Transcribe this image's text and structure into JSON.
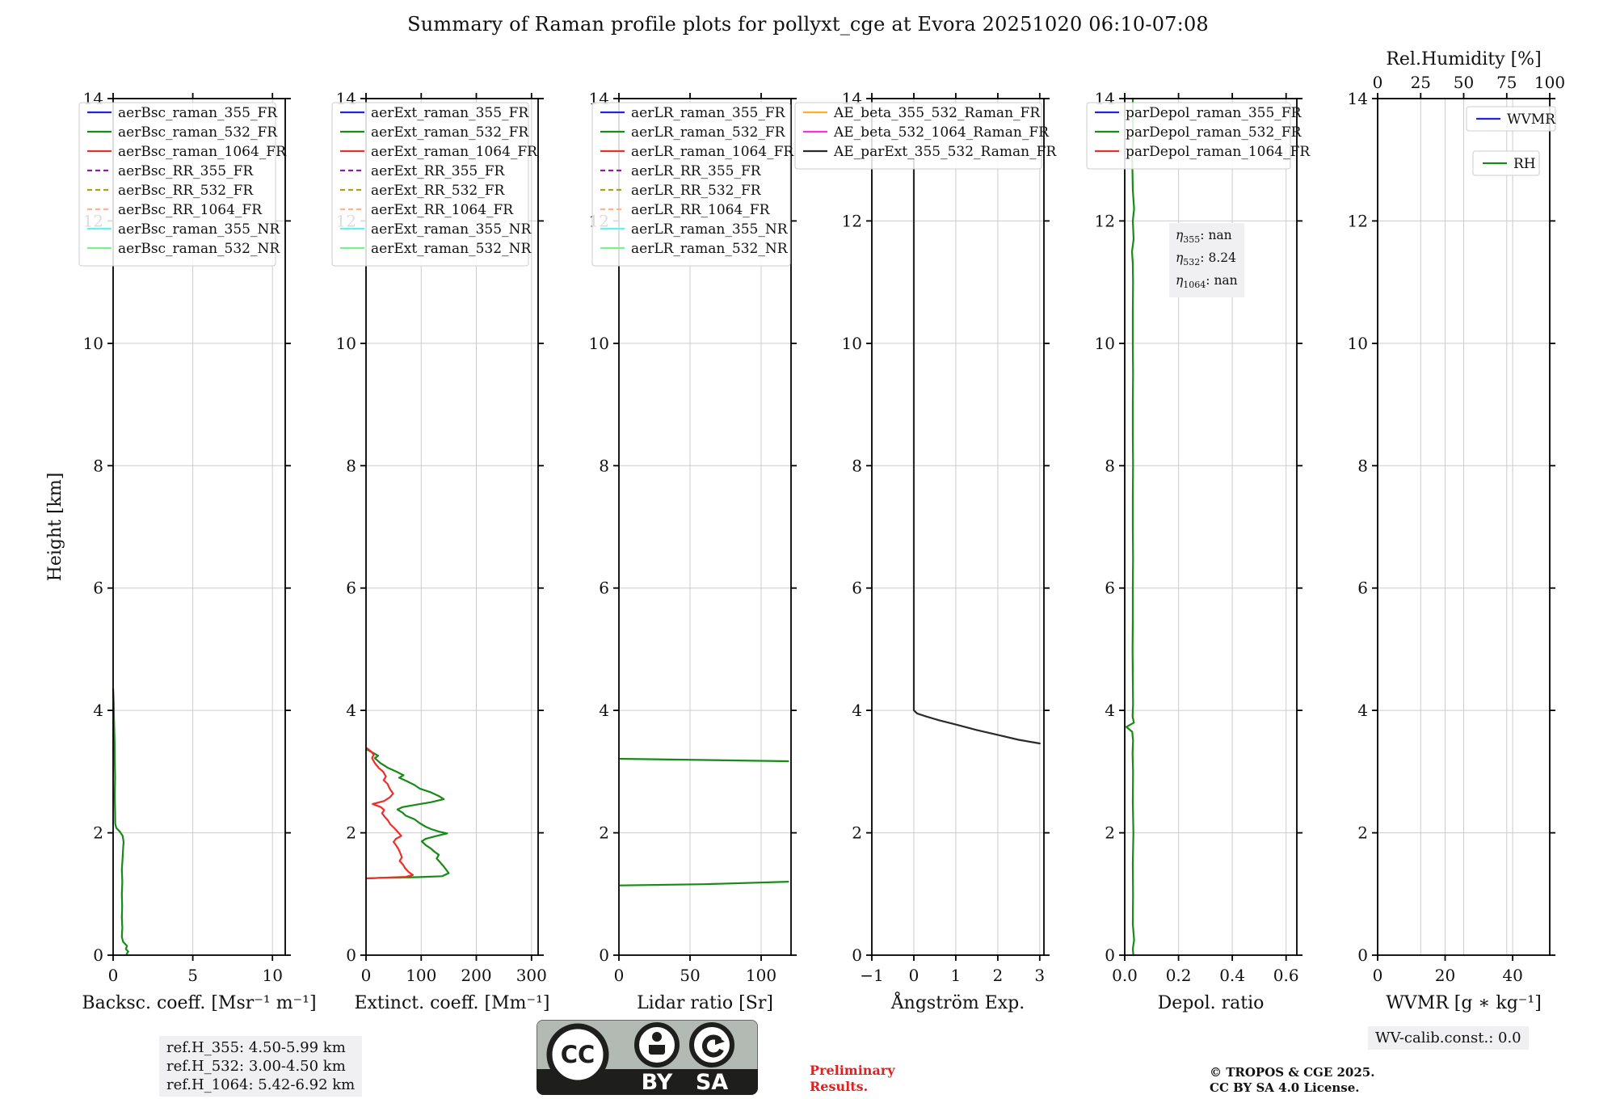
{
  "title": "Summary of Raman profile plots for pollyxt_cge at Evora 20251020 06:10-07:08",
  "colors": {
    "blue": "#2222e6",
    "green": "#188a18",
    "red": "#e8312a",
    "purple": "#8a1fa0",
    "olive": "#a8a21c",
    "salmon": "#ffb48e",
    "cyan": "#63f2ea",
    "lightgreen": "#7dee8d",
    "orange": "#ffb028",
    "magenta": "#ff2fd8",
    "black": "#2a2a2a",
    "grid": "#cccccc",
    "annot_bg": "#f0f0f2",
    "preliminary_red": "#dd2222"
  },
  "eta": {
    "rows": [
      {
        "sub": "355",
        "val": "nan"
      },
      {
        "sub": "532",
        "val": "8.24"
      },
      {
        "sub": "1064",
        "val": "nan"
      }
    ]
  },
  "footer": {
    "ref_box": [
      "ref.H_355: 4.50-5.99 km",
      "ref.H_532: 3.00-4.50 km",
      "ref.H_1064: 5.42-6.92 km"
    ],
    "preliminary": [
      "Preliminary",
      "Results."
    ],
    "copyright": [
      "© TROPOS & CGE 2025.",
      "CC BY SA 4.0 License."
    ],
    "wv_calib": "WV-calib.const.: 0.0",
    "cc_badge": {
      "cc": "CC",
      "by": "BY",
      "sa": "SA"
    }
  },
  "chart_data": [
    {
      "type": "line",
      "xlabel": "Backsc. coeff. [Msr⁻¹ m⁻¹]",
      "ylabel": "Height [km]",
      "xlim": [
        0,
        10.8
      ],
      "xticks": [
        0,
        5,
        10
      ],
      "xtick_labels": [
        "0",
        "5",
        "10"
      ],
      "ylim": [
        0,
        14
      ],
      "yticks": [
        0,
        2,
        4,
        6,
        8,
        10,
        12,
        14
      ],
      "legend": [
        {
          "label": "aerBsc_raman_355_FR",
          "color": "blue",
          "dash": false
        },
        {
          "label": "aerBsc_raman_532_FR",
          "color": "green",
          "dash": false
        },
        {
          "label": "aerBsc_raman_1064_FR",
          "color": "red",
          "dash": false
        },
        {
          "label": "aerBsc_RR_355_FR",
          "color": "purple",
          "dash": true
        },
        {
          "label": "aerBsc_RR_532_FR",
          "color": "olive",
          "dash": true
        },
        {
          "label": "aerBsc_RR_1064_FR",
          "color": "salmon",
          "dash": true
        },
        {
          "label": "aerBsc_raman_355_NR",
          "color": "cyan",
          "dash": false
        },
        {
          "label": "aerBsc_raman_532_NR",
          "color": "lightgreen",
          "dash": false
        }
      ],
      "series": [
        {
          "name": "aerBsc_raman_532_FR",
          "color": "green",
          "points": [
            [
              0.85,
              0.02
            ],
            [
              0.95,
              0.06
            ],
            [
              0.8,
              0.1
            ],
            [
              0.87,
              0.15
            ],
            [
              0.62,
              0.22
            ],
            [
              0.55,
              0.3
            ],
            [
              0.58,
              0.45
            ],
            [
              0.55,
              0.62
            ],
            [
              0.57,
              0.8
            ],
            [
              0.55,
              1.0
            ],
            [
              0.58,
              1.2
            ],
            [
              0.55,
              1.4
            ],
            [
              0.6,
              1.6
            ],
            [
              0.63,
              1.75
            ],
            [
              0.66,
              1.85
            ],
            [
              0.6,
              1.95
            ],
            [
              0.42,
              2.02
            ],
            [
              0.2,
              2.08
            ],
            [
              0.13,
              2.15
            ],
            [
              0.12,
              2.35
            ],
            [
              0.1,
              2.6
            ],
            [
              0.12,
              2.9
            ],
            [
              0.1,
              3.2
            ],
            [
              0.09,
              3.5
            ],
            [
              0.07,
              3.7
            ],
            [
              0.05,
              3.9
            ],
            [
              0.04,
              4.1
            ],
            [
              0.02,
              4.25
            ],
            [
              0,
              4.35
            ]
          ]
        }
      ]
    },
    {
      "type": "line",
      "xlabel": "Extinct. coeff. [Mm⁻¹]",
      "xlim": [
        0,
        312
      ],
      "xticks": [
        0,
        100,
        200,
        300
      ],
      "xtick_labels": [
        "0",
        "100",
        "200",
        "300"
      ],
      "ylim": [
        0,
        14
      ],
      "yticks": [
        0,
        2,
        4,
        6,
        8,
        10,
        12,
        14
      ],
      "legend": [
        {
          "label": "aerExt_raman_355_FR",
          "color": "blue",
          "dash": false
        },
        {
          "label": "aerExt_raman_532_FR",
          "color": "green",
          "dash": false
        },
        {
          "label": "aerExt_raman_1064_FR",
          "color": "red",
          "dash": false
        },
        {
          "label": "aerExt_RR_355_FR",
          "color": "purple",
          "dash": true
        },
        {
          "label": "aerExt_RR_532_FR",
          "color": "olive",
          "dash": true
        },
        {
          "label": "aerExt_RR_1064_FR",
          "color": "salmon",
          "dash": true
        },
        {
          "label": "aerExt_raman_355_NR",
          "color": "cyan",
          "dash": false
        },
        {
          "label": "aerExt_raman_532_NR",
          "color": "lightgreen",
          "dash": false
        }
      ],
      "series": [
        {
          "name": "aerExt_raman_532_FR",
          "color": "green",
          "points": [
            [
              2,
              3.36
            ],
            [
              14,
              3.3
            ],
            [
              22,
              3.26
            ],
            [
              16,
              3.22
            ],
            [
              26,
              3.14
            ],
            [
              40,
              3.06
            ],
            [
              55,
              3.0
            ],
            [
              68,
              2.94
            ],
            [
              60,
              2.9
            ],
            [
              75,
              2.84
            ],
            [
              88,
              2.78
            ],
            [
              98,
              2.72
            ],
            [
              118,
              2.66
            ],
            [
              132,
              2.6
            ],
            [
              141,
              2.55
            ],
            [
              118,
              2.5
            ],
            [
              92,
              2.46
            ],
            [
              66,
              2.42
            ],
            [
              57,
              2.38
            ],
            [
              66,
              2.33
            ],
            [
              72,
              2.28
            ],
            [
              88,
              2.22
            ],
            [
              97,
              2.16
            ],
            [
              108,
              2.1
            ],
            [
              118,
              2.06
            ],
            [
              132,
              2.02
            ],
            [
              147,
              1.99
            ],
            [
              128,
              1.95
            ],
            [
              108,
              1.9
            ],
            [
              101,
              1.86
            ],
            [
              108,
              1.8
            ],
            [
              118,
              1.74
            ],
            [
              124,
              1.69
            ],
            [
              132,
              1.64
            ],
            [
              128,
              1.58
            ],
            [
              134,
              1.52
            ],
            [
              140,
              1.46
            ],
            [
              145,
              1.4
            ],
            [
              150,
              1.34
            ],
            [
              138,
              1.29
            ],
            [
              92,
              1.275
            ],
            [
              30,
              1.265
            ],
            [
              2,
              1.255
            ]
          ]
        },
        {
          "name": "aerExt_raman_1064_FR",
          "color": "red",
          "points": [
            [
              2,
              3.38
            ],
            [
              9,
              3.33
            ],
            [
              14,
              3.28
            ],
            [
              11,
              3.22
            ],
            [
              16,
              3.14
            ],
            [
              23,
              3.06
            ],
            [
              31,
              3.0
            ],
            [
              36,
              2.92
            ],
            [
              32,
              2.86
            ],
            [
              39,
              2.8
            ],
            [
              43,
              2.72
            ],
            [
              49,
              2.64
            ],
            [
              43,
              2.58
            ],
            [
              33,
              2.52
            ],
            [
              12,
              2.47
            ],
            [
              27,
              2.42
            ],
            [
              33,
              2.37
            ],
            [
              29,
              2.32
            ],
            [
              34,
              2.26
            ],
            [
              40,
              2.2
            ],
            [
              44,
              2.14
            ],
            [
              51,
              2.08
            ],
            [
              59,
              2.0
            ],
            [
              64,
              1.95
            ],
            [
              54,
              1.9
            ],
            [
              50,
              1.85
            ],
            [
              55,
              1.79
            ],
            [
              59,
              1.73
            ],
            [
              62,
              1.67
            ],
            [
              65,
              1.6
            ],
            [
              61,
              1.54
            ],
            [
              67,
              1.48
            ],
            [
              71,
              1.42
            ],
            [
              77,
              1.36
            ],
            [
              85,
              1.31
            ],
            [
              72,
              1.28
            ],
            [
              30,
              1.265
            ],
            [
              3,
              1.255
            ]
          ]
        }
      ]
    },
    {
      "type": "line",
      "xlabel": "Lidar ratio [Sr]",
      "xlim": [
        0,
        121
      ],
      "xticks": [
        0,
        50,
        100
      ],
      "xtick_labels": [
        "0",
        "50",
        "100"
      ],
      "ylim": [
        0,
        14
      ],
      "yticks": [
        0,
        2,
        4,
        6,
        8,
        10,
        12,
        14
      ],
      "legend": [
        {
          "label": "aerLR_raman_355_FR",
          "color": "blue",
          "dash": false
        },
        {
          "label": "aerLR_raman_532_FR",
          "color": "green",
          "dash": false
        },
        {
          "label": "aerLR_raman_1064_FR",
          "color": "red",
          "dash": false
        },
        {
          "label": "aerLR_RR_355_FR",
          "color": "purple",
          "dash": true
        },
        {
          "label": "aerLR_RR_532_FR",
          "color": "olive",
          "dash": true
        },
        {
          "label": "aerLR_RR_1064_FR",
          "color": "salmon",
          "dash": true
        },
        {
          "label": "aerLR_raman_355_NR",
          "color": "cyan",
          "dash": false
        },
        {
          "label": "aerLR_raman_532_NR",
          "color": "lightgreen",
          "dash": false
        }
      ],
      "series": [
        {
          "name": "aerLR_raman_532_FR_upper",
          "color": "green",
          "points": [
            [
              1,
              3.21
            ],
            [
              119,
              3.17
            ]
          ]
        },
        {
          "name": "aerLR_raman_532_FR_lower",
          "color": "green",
          "points": [
            [
              1,
              1.14
            ],
            [
              60,
              1.16
            ],
            [
              119,
              1.2
            ]
          ]
        }
      ]
    },
    {
      "type": "line",
      "xlabel": "Ångström Exp.",
      "xlim": [
        -1,
        3.1
      ],
      "xticks": [
        -1,
        0,
        1,
        2,
        3
      ],
      "xtick_labels": [
        "−1",
        "0",
        "1",
        "2",
        "3"
      ],
      "ylim": [
        0,
        14
      ],
      "yticks": [
        0,
        2,
        4,
        6,
        8,
        10,
        12,
        14
      ],
      "legend": [
        {
          "label": "AE_beta_355_532_Raman_FR",
          "color": "orange",
          "dash": false
        },
        {
          "label": "AE_beta_532_1064_Raman_FR",
          "color": "magenta",
          "dash": false
        },
        {
          "label": "AE_parExt_355_532_Raman_FR",
          "color": "black",
          "dash": false
        }
      ],
      "series": [
        {
          "name": "AE_parExt_355_532_Raman_FR",
          "color": "black",
          "points": [
            [
              0,
              13.0
            ],
            [
              0,
              4.0
            ],
            [
              0.08,
              3.95
            ],
            [
              0.3,
              3.9
            ],
            [
              0.6,
              3.84
            ],
            [
              1.0,
              3.77
            ],
            [
              1.5,
              3.68
            ],
            [
              2.0,
              3.6
            ],
            [
              2.5,
              3.52
            ],
            [
              3.0,
              3.46
            ]
          ]
        }
      ]
    },
    {
      "type": "line",
      "xlabel": "Depol. ratio",
      "xlim": [
        0,
        0.64
      ],
      "xticks": [
        0,
        0.2,
        0.4,
        0.6
      ],
      "xtick_labels": [
        "0.0",
        "0.2",
        "0.4",
        "0.6"
      ],
      "ylim": [
        0,
        14
      ],
      "yticks": [
        0,
        2,
        4,
        6,
        8,
        10,
        12,
        14
      ],
      "annotation_eta": {
        "eta_355": "nan",
        "eta_532": "8.24",
        "eta_1064": "nan"
      },
      "legend": [
        {
          "label": "parDepol_raman_355_FR",
          "color": "blue",
          "dash": false
        },
        {
          "label": "parDepol_raman_532_FR",
          "color": "green",
          "dash": false
        },
        {
          "label": "parDepol_raman_1064_FR",
          "color": "red",
          "dash": false
        }
      ],
      "series": [
        {
          "name": "parDepol_raman_532_FR",
          "color": "green",
          "points": [
            [
              0.032,
              0
            ],
            [
              0.03,
              0.1
            ],
            [
              0.035,
              0.25
            ],
            [
              0.03,
              0.5
            ],
            [
              0.031,
              1.0
            ],
            [
              0.03,
              1.5
            ],
            [
              0.032,
              2.0
            ],
            [
              0.03,
              2.5
            ],
            [
              0.031,
              3.0
            ],
            [
              0.029,
              3.3
            ],
            [
              0.031,
              3.5
            ],
            [
              0.028,
              3.65
            ],
            [
              0.006,
              3.73
            ],
            [
              0.034,
              3.8
            ],
            [
              0.029,
              3.9
            ],
            [
              0.031,
              4.1
            ],
            [
              0.03,
              4.5
            ],
            [
              0.029,
              5.0
            ],
            [
              0.03,
              5.5
            ],
            [
              0.03,
              6.0
            ],
            [
              0.031,
              6.5
            ],
            [
              0.03,
              7.0
            ],
            [
              0.03,
              7.5
            ],
            [
              0.031,
              8.0
            ],
            [
              0.03,
              8.5
            ],
            [
              0.03,
              9.0
            ],
            [
              0.031,
              9.5
            ],
            [
              0.03,
              10.0
            ],
            [
              0.03,
              10.5
            ],
            [
              0.031,
              11.0
            ],
            [
              0.03,
              11.3
            ],
            [
              0.027,
              11.5
            ],
            [
              0.033,
              11.7
            ],
            [
              0.03,
              12.0
            ],
            [
              0.035,
              12.2
            ],
            [
              0.03,
              12.5
            ],
            [
              0.028,
              13.0
            ],
            [
              0.031,
              13.5
            ],
            [
              0.03,
              14.0
            ]
          ]
        }
      ]
    },
    {
      "type": "line",
      "xlabel": "WVMR [g ∗ kg⁻¹]",
      "xlim": [
        0,
        51
      ],
      "xticks": [
        0,
        20,
        40
      ],
      "xtick_labels": [
        "0",
        "20",
        "40"
      ],
      "ylim": [
        0,
        14
      ],
      "yticks": [
        0,
        2,
        4,
        6,
        8,
        10,
        12,
        14
      ],
      "top_axis": {
        "label": "Rel.Humidity [%]",
        "lim": [
          0,
          100
        ],
        "ticks": [
          0,
          25,
          50,
          75,
          100
        ],
        "tick_labels": [
          "0",
          "25",
          "50",
          "75",
          "100"
        ]
      },
      "legend_boxes": [
        {
          "label": "WVMR",
          "color": "blue"
        },
        {
          "label": "RH",
          "color": "green"
        }
      ],
      "series": []
    }
  ]
}
